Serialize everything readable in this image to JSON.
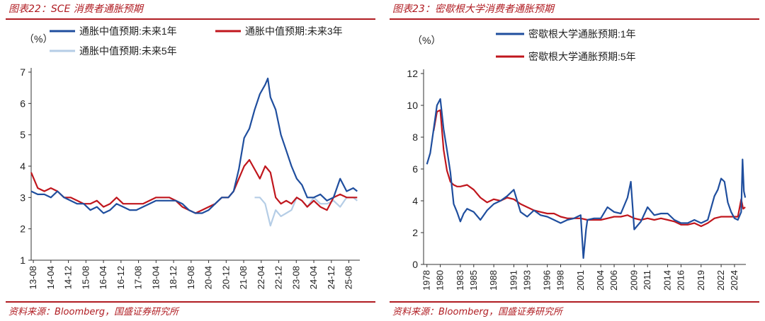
{
  "page": {
    "left_title": "图表22：SCE 消费者通胀预期",
    "right_title": "图表23：密歇根大学消费者通胀预期",
    "source": "资料来源：Bloomberg，国盛证券研究所",
    "accent_color": "#b01c22"
  },
  "chart_data": [
    {
      "type": "line",
      "title": "SCE 消费者通胀预期",
      "ylabel": "（%）",
      "ylim": [
        1,
        7
      ],
      "yticks": [
        1,
        2,
        3,
        4,
        5,
        6,
        7
      ],
      "x_tick_labels": [
        "13-08",
        "14-04",
        "14-12",
        "15-08",
        "16-04",
        "16-12",
        "17-08",
        "18-04",
        "18-12",
        "19-08",
        "20-04",
        "20-12",
        "21-08",
        "22-04",
        "22-12",
        "23-08",
        "24-04",
        "24-12",
        "25-08"
      ],
      "x_tick_positions": [
        2013.583,
        2014.25,
        2014.917,
        2015.583,
        2016.25,
        2016.917,
        2017.583,
        2018.25,
        2018.917,
        2019.583,
        2020.25,
        2020.917,
        2021.583,
        2022.25,
        2022.917,
        2023.583,
        2024.25,
        2024.917,
        2025.583
      ],
      "xlim": [
        2013.5,
        2026.0
      ],
      "legend_position": "top",
      "series": [
        {
          "name": "通胀中值预期:未来1年",
          "color": "#1f4e9e",
          "x": [
            2013.5,
            2013.75,
            2014.0,
            2014.25,
            2014.5,
            2014.75,
            2015.0,
            2015.25,
            2015.5,
            2015.75,
            2016.0,
            2016.25,
            2016.5,
            2016.75,
            2017.0,
            2017.25,
            2017.5,
            2017.75,
            2018.0,
            2018.25,
            2018.5,
            2018.75,
            2019.0,
            2019.25,
            2019.5,
            2019.75,
            2020.0,
            2020.25,
            2020.5,
            2020.75,
            2021.0,
            2021.2,
            2021.4,
            2021.6,
            2021.8,
            2022.0,
            2022.2,
            2022.4,
            2022.5,
            2022.6,
            2022.8,
            2023.0,
            2023.2,
            2023.4,
            2023.6,
            2023.8,
            2024.0,
            2024.25,
            2024.5,
            2024.75,
            2025.0,
            2025.25,
            2025.5,
            2025.75,
            2025.9
          ],
          "values": [
            3.2,
            3.1,
            3.1,
            3.0,
            3.2,
            3.0,
            2.9,
            2.8,
            2.8,
            2.6,
            2.7,
            2.5,
            2.6,
            2.8,
            2.7,
            2.6,
            2.6,
            2.7,
            2.8,
            2.9,
            2.9,
            2.9,
            2.9,
            2.8,
            2.6,
            2.5,
            2.5,
            2.6,
            2.8,
            3.0,
            3.0,
            3.2,
            3.9,
            4.9,
            5.2,
            5.8,
            6.3,
            6.6,
            6.8,
            6.2,
            5.8,
            5.0,
            4.5,
            4.0,
            3.6,
            3.4,
            3.0,
            3.0,
            3.1,
            2.9,
            3.0,
            3.6,
            3.2,
            3.3,
            3.2
          ]
        },
        {
          "name": "通胀中值预期:未来3年",
          "color": "#c0161d",
          "x": [
            2013.5,
            2013.75,
            2014.0,
            2014.25,
            2014.5,
            2014.75,
            2015.0,
            2015.25,
            2015.5,
            2015.75,
            2016.0,
            2016.25,
            2016.5,
            2016.75,
            2017.0,
            2017.25,
            2017.5,
            2017.75,
            2018.0,
            2018.25,
            2018.5,
            2018.75,
            2019.0,
            2019.25,
            2019.5,
            2019.75,
            2020.0,
            2020.25,
            2020.5,
            2020.75,
            2021.0,
            2021.2,
            2021.4,
            2021.6,
            2021.8,
            2022.0,
            2022.2,
            2022.4,
            2022.6,
            2022.8,
            2023.0,
            2023.2,
            2023.4,
            2023.6,
            2023.8,
            2024.0,
            2024.25,
            2024.5,
            2024.75,
            2025.0,
            2025.25,
            2025.5,
            2025.75,
            2025.9
          ],
          "values": [
            3.8,
            3.3,
            3.2,
            3.3,
            3.2,
            3.0,
            3.0,
            2.9,
            2.8,
            2.8,
            2.9,
            2.7,
            2.8,
            3.0,
            2.8,
            2.8,
            2.8,
            2.8,
            2.9,
            3.0,
            3.0,
            3.0,
            2.9,
            2.7,
            2.6,
            2.5,
            2.6,
            2.7,
            2.8,
            3.0,
            3.0,
            3.2,
            3.6,
            4.0,
            4.2,
            3.9,
            3.6,
            4.0,
            3.8,
            3.0,
            2.8,
            2.9,
            2.8,
            3.0,
            2.9,
            2.7,
            2.9,
            2.7,
            2.6,
            3.0,
            3.1,
            3.0,
            3.0,
            3.0
          ]
        },
        {
          "name": "通胀中值预期:未来5年",
          "color": "#b5cde6",
          "x": [
            2022.0,
            2022.2,
            2022.4,
            2022.6,
            2022.8,
            2023.0,
            2023.2,
            2023.4,
            2023.6,
            2023.8,
            2024.0,
            2024.25,
            2024.5,
            2024.75,
            2025.0,
            2025.25,
            2025.5,
            2025.75,
            2025.9
          ],
          "values": [
            3.0,
            3.0,
            2.8,
            2.1,
            2.6,
            2.4,
            2.5,
            2.6,
            3.0,
            2.9,
            2.7,
            3.0,
            2.8,
            2.8,
            2.9,
            2.7,
            3.0,
            3.0,
            2.9
          ]
        }
      ]
    },
    {
      "type": "line",
      "title": "密歇根大学消费者通胀预期",
      "ylabel": "（%）",
      "ylim": [
        0,
        12
      ],
      "yticks": [
        0,
        2,
        4,
        6,
        8,
        10,
        12
      ],
      "x_tick_labels": [
        "1978",
        "1980",
        "1983",
        "1985",
        "1988",
        "1991",
        "1993",
        "1996",
        "1998",
        "2001",
        "2004",
        "2006",
        "2009",
        "2011",
        "2014",
        "2016",
        "2019",
        "2022",
        "2024"
      ],
      "x_tick_positions": [
        1978,
        1980,
        1983,
        1985,
        1988,
        1991,
        1993,
        1996,
        1998,
        2001,
        2004,
        2006,
        2009,
        2011,
        2014,
        2016,
        2019,
        2022,
        2024
      ],
      "xlim": [
        1977.5,
        2025.7
      ],
      "legend_position": "top",
      "series": [
        {
          "name": "密歇根大学通胀预期:1年",
          "color": "#1f4e9e",
          "x": [
            1978,
            1978.5,
            1979,
            1979.5,
            1980,
            1980.5,
            1981,
            1981.5,
            1982,
            1982.5,
            1983,
            1983.5,
            1984,
            1985,
            1986,
            1987,
            1988,
            1989,
            1990,
            1991,
            1992,
            1993,
            1994,
            1995,
            1996,
            1997,
            1998,
            1999,
            2000,
            2001,
            2001.4,
            2001.8,
            2002,
            2003,
            2004,
            2005,
            2006,
            2007,
            2008,
            2008.5,
            2009,
            2010,
            2011,
            2012,
            2013,
            2014,
            2015,
            2016,
            2017,
            2018,
            2019,
            2020,
            2021,
            2021.5,
            2022,
            2022.5,
            2023,
            2023.5,
            2024,
            2024.5,
            2025,
            2025.2,
            2025.4,
            2025.6
          ],
          "values": [
            6.3,
            7.0,
            8.5,
            10.0,
            10.4,
            8.5,
            7.2,
            5.8,
            3.8,
            3.3,
            2.7,
            3.2,
            3.5,
            3.3,
            2.8,
            3.4,
            3.8,
            4.0,
            4.3,
            4.7,
            3.3,
            3.0,
            3.4,
            3.1,
            3.0,
            2.8,
            2.6,
            2.8,
            2.9,
            3.1,
            0.4,
            2.2,
            2.8,
            2.9,
            2.9,
            3.6,
            3.3,
            3.2,
            4.2,
            5.2,
            2.2,
            2.7,
            3.6,
            3.1,
            3.2,
            3.2,
            2.8,
            2.6,
            2.6,
            2.8,
            2.6,
            2.8,
            4.3,
            4.7,
            5.4,
            5.2,
            3.9,
            3.3,
            2.9,
            2.8,
            3.3,
            6.6,
            4.6,
            4.2
          ]
        },
        {
          "name": "密歇根大学通胀预期:5年",
          "color": "#c0161d",
          "x": [
            1979,
            1979.5,
            1980,
            1980.5,
            1981,
            1981.5,
            1982,
            1982.5,
            1983,
            1984,
            1985,
            1986,
            1987,
            1988,
            1989,
            1990,
            1991,
            1992,
            1993,
            1994,
            1995,
            1996,
            1997,
            1998,
            1999,
            2000,
            2001,
            2002,
            2003,
            2004,
            2005,
            2006,
            2007,
            2008,
            2009,
            2010,
            2011,
            2012,
            2013,
            2014,
            2015,
            2016,
            2017,
            2018,
            2019,
            2020,
            2021,
            2022,
            2023,
            2024,
            2024.5,
            2025,
            2025.3,
            2025.6
          ],
          "values": [
            8.4,
            9.6,
            9.7,
            7.2,
            5.9,
            5.2,
            5.0,
            4.9,
            4.9,
            5.0,
            4.7,
            4.2,
            3.9,
            4.1,
            4.0,
            4.2,
            4.1,
            3.8,
            3.6,
            3.4,
            3.3,
            3.2,
            3.2,
            3.0,
            2.9,
            2.9,
            2.9,
            2.8,
            2.8,
            2.8,
            2.9,
            3.0,
            3.0,
            3.1,
            2.9,
            2.8,
            2.9,
            2.8,
            2.9,
            2.8,
            2.7,
            2.5,
            2.5,
            2.6,
            2.4,
            2.6,
            2.9,
            3.0,
            3.0,
            3.0,
            3.0,
            4.1,
            3.5,
            3.6
          ]
        }
      ]
    }
  ]
}
